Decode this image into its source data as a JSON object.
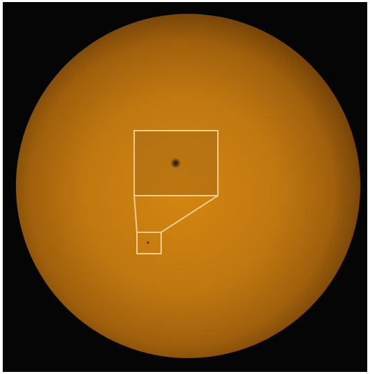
{
  "image": {
    "subject": "sun-disc-with-sunspot",
    "colors": {
      "background": "#050505",
      "sun_center": "#d4860f",
      "sun_mid": "#bf7710",
      "sun_edge": "#7a4608",
      "overlay_stroke": "#f2d08c",
      "sunspot_umbra": "#3a2408",
      "sunspot_penumbra": "#7e5412",
      "zoom_box_fill": "#a96a14"
    }
  }
}
